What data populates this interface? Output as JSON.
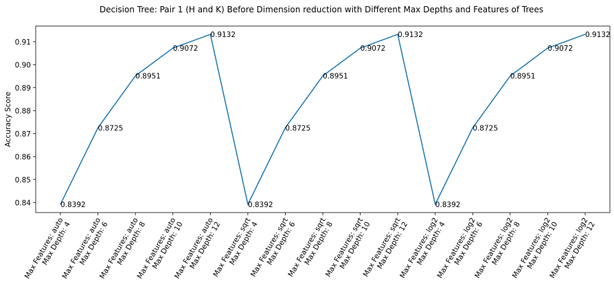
{
  "chart_data": {
    "type": "line",
    "title": "Decision Tree: Pair 1 (H and K) Before Dimension reduction with Different Max Depths and Features of Trees",
    "xlabel": "",
    "ylabel": "Accuracy Score",
    "categories": [
      [
        "Max Features: auto",
        "Max Depth: 4"
      ],
      [
        "Max Features: auto",
        "Max Depth: 6"
      ],
      [
        "Max Features: auto",
        "Max Depth: 8"
      ],
      [
        "Max Features: auto",
        "Max Depth: 10"
      ],
      [
        "Max Features: auto",
        "Max Depth: 12"
      ],
      [
        "Max Features: sqrt",
        "Max Depth: 4"
      ],
      [
        "Max Features: sqrt",
        "Max Depth: 6"
      ],
      [
        "Max Features: sqrt",
        "Max Depth: 8"
      ],
      [
        "Max Features: sqrt",
        "Max Depth: 10"
      ],
      [
        "Max Features: sqrt",
        "Max Depth: 12"
      ],
      [
        "Max Features: log2",
        "Max Depth: 4"
      ],
      [
        "Max Features: log2",
        "Max Depth: 6"
      ],
      [
        "Max Features: log2",
        "Max Depth: 8"
      ],
      [
        "Max Features: log2",
        "Max Depth: 10"
      ],
      [
        "Max Features: log2",
        "Max Depth: 12"
      ]
    ],
    "values": [
      0.8392,
      0.8725,
      0.8951,
      0.9072,
      0.9132,
      0.8392,
      0.8725,
      0.8951,
      0.9072,
      0.9132,
      0.8392,
      0.8725,
      0.8951,
      0.9072,
      0.9132
    ],
    "data_labels": [
      "0.8392",
      "0.8725",
      "0.8951",
      "0.9072",
      "0.9132",
      "0.8392",
      "0.8725",
      "0.8951",
      "0.9072",
      "0.9132",
      "0.8392",
      "0.8725",
      "0.8951",
      "0.9072",
      "0.9132"
    ],
    "yticks": [
      "0.84",
      "0.85",
      "0.86",
      "0.87",
      "0.88",
      "0.89",
      "0.90",
      "0.91"
    ],
    "ylim": [
      0.8356,
      0.9168
    ],
    "grid": false,
    "line_color": "#1f77b4"
  }
}
